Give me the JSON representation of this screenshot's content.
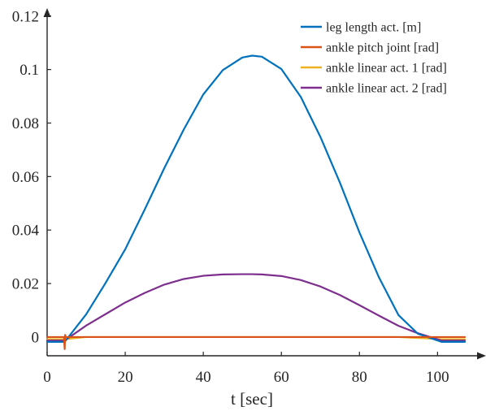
{
  "chart_data": {
    "type": "line",
    "title": "",
    "xlabel": "t [sec]",
    "ylabel": "",
    "xlim": [
      0,
      112
    ],
    "ylim": [
      -0.007,
      0.126
    ],
    "xticks": [
      0,
      20,
      40,
      60,
      80,
      100
    ],
    "xtick_labels": [
      "0",
      "20",
      "40",
      "60",
      "80",
      "100"
    ],
    "yticks": [
      0,
      0.02,
      0.04,
      0.06,
      0.08,
      0.1,
      0.12
    ],
    "ytick_labels": [
      "0",
      "0.02",
      "0.04",
      "0.06",
      "0.08",
      "0.1",
      "0.12"
    ],
    "grid": false,
    "legend_position": "top-right",
    "series": [
      {
        "name": "leg length act. [m]",
        "color": "#0072BD",
        "x": [
          0,
          4.5,
          10,
          15,
          20,
          25,
          30,
          35,
          40,
          45,
          50,
          52.5,
          55,
          60,
          65,
          70,
          75,
          80,
          85,
          90,
          95,
          101,
          102,
          107
        ],
        "y": [
          -0.0018,
          -0.0018,
          0.0085,
          0.0203,
          0.0328,
          0.0477,
          0.0631,
          0.0776,
          0.0907,
          0.0998,
          0.1045,
          0.1052,
          0.1048,
          0.1002,
          0.0897,
          0.0748,
          0.0577,
          0.0391,
          0.0223,
          0.0082,
          0.0012,
          -0.0018,
          -0.0018,
          -0.0018
        ]
      },
      {
        "name": "ankle pitch joint [rad]",
        "color": "#D95319",
        "x": [
          0,
          4.3,
          4.5,
          4.6,
          4.8,
          10,
          50,
          100,
          107
        ],
        "y": [
          0,
          0,
          -0.0045,
          0.0008,
          0,
          0,
          0,
          0,
          0
        ]
      },
      {
        "name": "ankle linear act. 1 [rad]",
        "color": "#EDB120",
        "x": [
          0,
          4.5,
          10,
          20,
          30,
          40,
          50,
          60,
          70,
          80,
          90,
          101,
          107
        ],
        "y": [
          -0.0008,
          -0.0008,
          0,
          0,
          0,
          0,
          0,
          0,
          0,
          0,
          0,
          -0.0008,
          -0.0008
        ]
      },
      {
        "name": "ankle linear act. 2 [rad]",
        "color": "#7E2F8E",
        "x": [
          0,
          4.5,
          10,
          15,
          20,
          25,
          30,
          35,
          40,
          45,
          50,
          52.5,
          55,
          60,
          65,
          70,
          75,
          80,
          85,
          90,
          95,
          101,
          102,
          107
        ],
        "y": [
          -0.0013,
          -0.0013,
          0.0043,
          0.0086,
          0.0129,
          0.0165,
          0.0196,
          0.0217,
          0.0229,
          0.0234,
          0.0235,
          0.0235,
          0.0234,
          0.0228,
          0.0213,
          0.0189,
          0.0157,
          0.0119,
          0.008,
          0.0042,
          0.0014,
          -0.0013,
          -0.0013,
          -0.0013
        ]
      }
    ]
  }
}
